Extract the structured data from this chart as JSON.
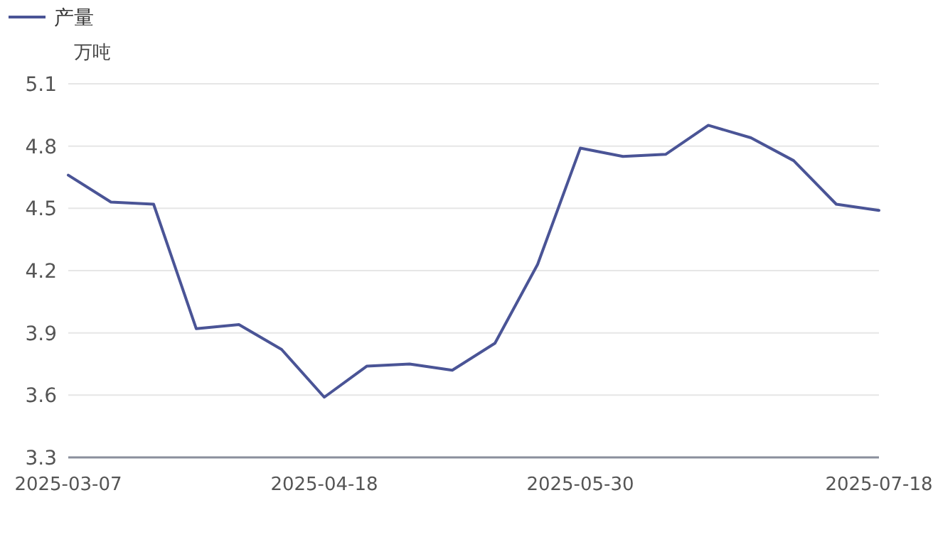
{
  "chart_data": {
    "type": "line",
    "ylabel": "万吨",
    "categories": [
      "2025-03-07",
      null,
      null,
      null,
      null,
      null,
      "2025-04-18",
      null,
      null,
      null,
      null,
      null,
      "2025-05-30",
      null,
      null,
      null,
      null,
      null,
      null,
      "2025-07-18"
    ],
    "series": [
      {
        "name": "产量",
        "color": "#4a5496",
        "values": [
          4.66,
          4.53,
          4.52,
          3.92,
          3.94,
          3.82,
          3.59,
          3.74,
          3.75,
          3.72,
          3.85,
          4.23,
          4.79,
          4.75,
          4.76,
          4.9,
          4.84,
          4.73,
          4.52,
          4.49
        ]
      }
    ],
    "ylim": [
      3.3,
      5.1
    ],
    "yticks": [
      3.3,
      3.6,
      3.9,
      4.2,
      4.5,
      4.8,
      5.1
    ],
    "grid": "y",
    "legend": "top left"
  }
}
